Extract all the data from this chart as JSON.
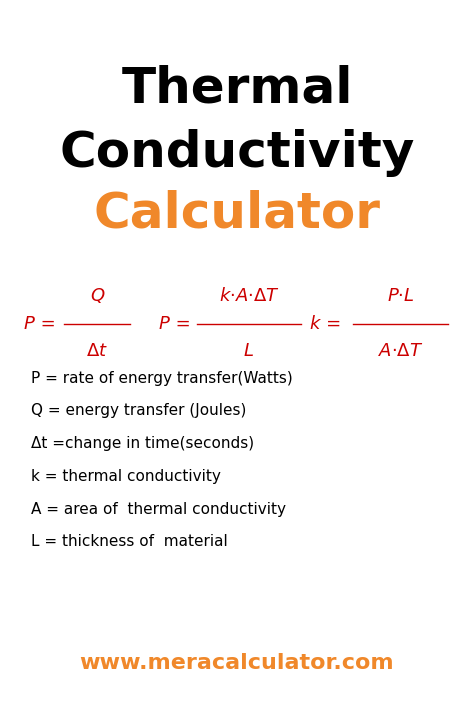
{
  "title_line1": "Thermal",
  "title_line2": "Conductivity",
  "title_line3": "Calculator",
  "title_color": "#000000",
  "title_orange_color": "#F0882A",
  "formula_color": "#CC0000",
  "desc_color": "#000000",
  "website": "www.meracalculator.com",
  "website_color": "#F0882A",
  "background_color": "#ffffff",
  "descriptions": [
    "P = rate of energy transfer(Watts)",
    "Q = energy transfer (Joules)",
    "Δt =change in time(seconds)",
    "k = thermal conductivity",
    "A = area of  thermal conductivity",
    "L = thickness of  material"
  ],
  "title_fontsize": 36,
  "formula_fontsize": 13,
  "desc_fontsize": 11,
  "website_fontsize": 16
}
